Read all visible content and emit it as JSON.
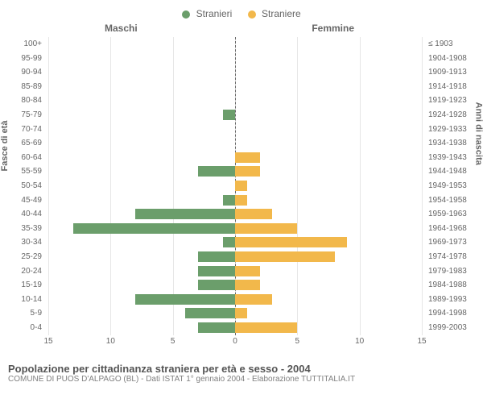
{
  "legend": {
    "male": {
      "label": "Stranieri",
      "color": "#6b9e6b"
    },
    "female": {
      "label": "Straniere",
      "color": "#f2b84b"
    }
  },
  "headers": {
    "left": "Maschi",
    "right": "Femmine"
  },
  "y_axis_left_title": "Fasce di età",
  "y_axis_right_title": "Anni di nascita",
  "x_max": 15,
  "x_ticks": [
    15,
    10,
    5,
    0,
    5,
    10,
    15
  ],
  "colors": {
    "male_bar": "#6b9e6b",
    "female_bar": "#f2b84b",
    "grid": "#e6e6e6",
    "center": "#666666",
    "text": "#666666",
    "bg": "#ffffff"
  },
  "rows": [
    {
      "age": "100+",
      "birth": "≤ 1903",
      "m": 0,
      "f": 0
    },
    {
      "age": "95-99",
      "birth": "1904-1908",
      "m": 0,
      "f": 0
    },
    {
      "age": "90-94",
      "birth": "1909-1913",
      "m": 0,
      "f": 0
    },
    {
      "age": "85-89",
      "birth": "1914-1918",
      "m": 0,
      "f": 0
    },
    {
      "age": "80-84",
      "birth": "1919-1923",
      "m": 0,
      "f": 0
    },
    {
      "age": "75-79",
      "birth": "1924-1928",
      "m": 1,
      "f": 0
    },
    {
      "age": "70-74",
      "birth": "1929-1933",
      "m": 0,
      "f": 0
    },
    {
      "age": "65-69",
      "birth": "1934-1938",
      "m": 0,
      "f": 0
    },
    {
      "age": "60-64",
      "birth": "1939-1943",
      "m": 0,
      "f": 2
    },
    {
      "age": "55-59",
      "birth": "1944-1948",
      "m": 3,
      "f": 2
    },
    {
      "age": "50-54",
      "birth": "1949-1953",
      "m": 0,
      "f": 1
    },
    {
      "age": "45-49",
      "birth": "1954-1958",
      "m": 1,
      "f": 1
    },
    {
      "age": "40-44",
      "birth": "1959-1963",
      "m": 8,
      "f": 3
    },
    {
      "age": "35-39",
      "birth": "1964-1968",
      "m": 13,
      "f": 5
    },
    {
      "age": "30-34",
      "birth": "1969-1973",
      "m": 1,
      "f": 9
    },
    {
      "age": "25-29",
      "birth": "1974-1978",
      "m": 3,
      "f": 8
    },
    {
      "age": "20-24",
      "birth": "1979-1983",
      "m": 3,
      "f": 2
    },
    {
      "age": "15-19",
      "birth": "1984-1988",
      "m": 3,
      "f": 2
    },
    {
      "age": "10-14",
      "birth": "1989-1993",
      "m": 8,
      "f": 3
    },
    {
      "age": "5-9",
      "birth": "1994-1998",
      "m": 4,
      "f": 1
    },
    {
      "age": "0-4",
      "birth": "1999-2003",
      "m": 3,
      "f": 5
    }
  ],
  "title": "Popolazione per cittadinanza straniera per età e sesso - 2004",
  "subtitle": "COMUNE DI PUOS D'ALPAGO (BL) - Dati ISTAT 1° gennaio 2004 - Elaborazione TUTTITALIA.IT"
}
